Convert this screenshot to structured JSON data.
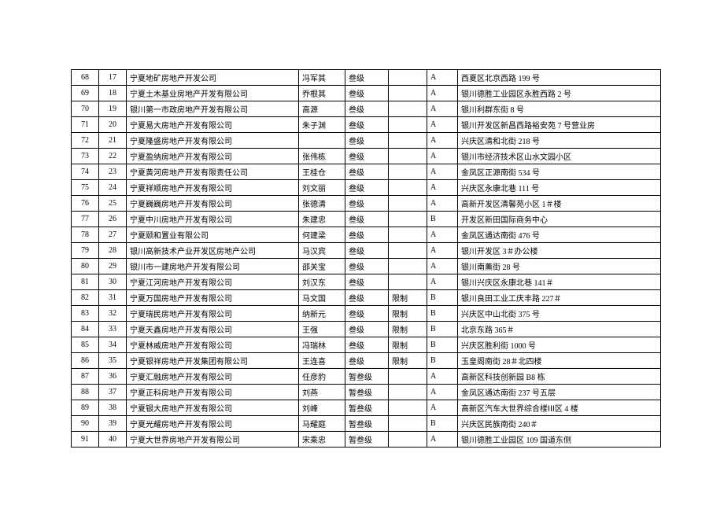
{
  "table": {
    "columns": [
      "c0",
      "c1",
      "c2",
      "c3",
      "c4",
      "c5",
      "c6",
      "c7"
    ],
    "rows": [
      [
        "68",
        "17",
        "宁夏地矿房地产开发公司",
        "冯军其",
        "叁级",
        "",
        "A",
        "西夏区北京西路 199 号"
      ],
      [
        "69",
        "18",
        "宁夏土木基业房地产开发有限公司",
        "乔根其",
        "叁级",
        "",
        "A",
        "银川德胜工业园区永胜西路 2 号"
      ],
      [
        "70",
        "19",
        "银川第一市政房地产开发有限公司",
        "高源",
        "叁级",
        "",
        "A",
        "银川利群东街 8 号"
      ],
      [
        "71",
        "20",
        "宁夏易大房地产开发有限公司",
        "朱子渊",
        "叁级",
        "",
        "A",
        "银川开发区新昌西路裕安苑 7 号营业房"
      ],
      [
        "72",
        "21",
        "宁夏隆盛房地产开发有限公司",
        "",
        "叁级",
        "",
        "A",
        "兴庆区清和北街 218 号"
      ],
      [
        "73",
        "22",
        "宁夏盈纳房地产开发有限公司",
        "张伟栋",
        "叁级",
        "",
        "A",
        "银川市经济技术区山水文园小区"
      ],
      [
        "74",
        "23",
        "宁夏黄河房地产开发有限责任公司",
        "王桂仓",
        "叁级",
        "",
        "A",
        "金凤区正源南街 534 号"
      ],
      [
        "75",
        "24",
        "宁夏祥顺房地产开发有限公司",
        "刘文丽",
        "叁级",
        "",
        "A",
        "兴庆区永康北巷 111 号"
      ],
      [
        "76",
        "25",
        "宁夏巍巍房地产开发有限公司",
        "张德清",
        "叁级",
        "",
        "A",
        "高新开发区清馨苑小区 1＃楼"
      ],
      [
        "77",
        "26",
        "宁夏中川房地产开发有限公司",
        "朱建忠",
        "叁级",
        "",
        "B",
        "开发区新田国际商务中心"
      ],
      [
        "78",
        "27",
        "宁夏颐和置业有限公司",
        "何建梁",
        "叁级",
        "",
        "A",
        "金凤区通达南街 476 号"
      ],
      [
        "79",
        "28",
        "银川高新技术产业开发区房地产公司",
        "马汉宾",
        "叁级",
        "",
        "A",
        "银川开发区 3＃办公楼"
      ],
      [
        "80",
        "29",
        "银川市一建房地产开发有限公司",
        "邵关宝",
        "叁级",
        "",
        "A",
        "银川南薰街 28 号"
      ],
      [
        "81",
        "30",
        "宁夏江河房地产开发有限公司",
        "刘汉东",
        "叁级",
        "",
        "A",
        "银川兴庆区永康北巷 141＃"
      ],
      [
        "82",
        "31",
        "宁夏万国房地产开发有限公司",
        "马文国",
        "叁级",
        "限制",
        "B",
        "银川良田工业工庆丰路 227＃"
      ],
      [
        "83",
        "32",
        "宁夏瑞民房地产开发有限公司",
        "纳新元",
        "叁级",
        "限制",
        "B",
        "兴庆区中山北街 375 号"
      ],
      [
        "84",
        "33",
        "宁夏天鑫房地产开发有限公司",
        "王强",
        "叁级",
        "限制",
        "B",
        "北京东路 365＃"
      ],
      [
        "85",
        "34",
        "宁夏林威房地产开发有限公司",
        "冯瑞林",
        "叁级",
        "限制",
        "B",
        "兴庆区胜利街 1000 号"
      ],
      [
        "86",
        "35",
        "宁夏银祥房地产开发集团有限公司",
        "王连喜",
        "叁级",
        "限制",
        "B",
        "玉皇阁南街 28＃北四楼"
      ],
      [
        "87",
        "36",
        "宁夏汇融房地产开发有限公司",
        "任彦豹",
        "暂叁级",
        "",
        "A",
        "高新区科技创新园 B8 栋"
      ],
      [
        "88",
        "37",
        "宁夏正科房地产开发有限公司",
        "刘燕",
        "暂叁级",
        "",
        "A",
        "金凤区通达南街 237 号五层"
      ],
      [
        "89",
        "38",
        "宁夏银大房地产开发有限公司",
        "刘峰",
        "暂叁级",
        "",
        "A",
        "高新区汽车大世界综合楼ⅠⅠⅠ区 4 楼"
      ],
      [
        "90",
        "39",
        "宁夏光耀房地产开发有限公司",
        "马耀庭",
        "暂叁级",
        "",
        "B",
        "兴庆区民族南街 240＃"
      ],
      [
        "91",
        "40",
        "宁夏大世界房地产开发有限公司",
        "宋乘忠",
        "暂叁级",
        "",
        "A",
        "银川德胜工业园区 109 国道东侧"
      ]
    ]
  }
}
